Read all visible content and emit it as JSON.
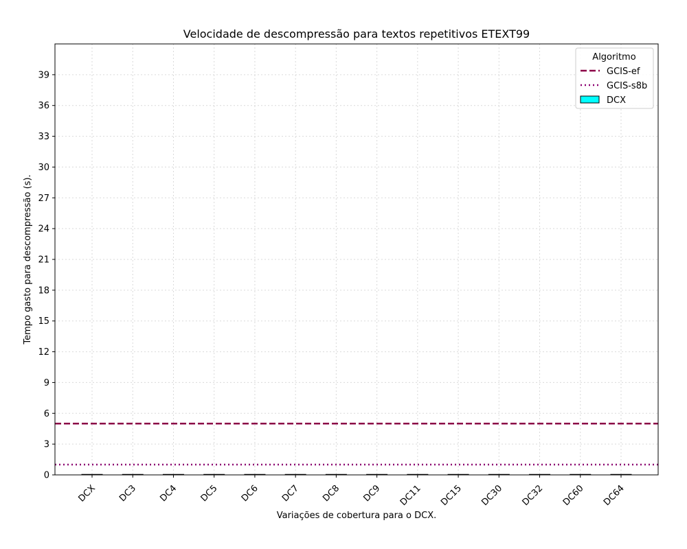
{
  "chart_data": {
    "type": "bar",
    "title": "Velocidade de descompressão para textos repetitivos ETEXT99",
    "xlabel": "Variações de cobertura para o DCX.",
    "ylabel": "Tempo gasto para descompressão (s).",
    "categories": [
      "DCX",
      "DC3",
      "DC4",
      "DC5",
      "DC6",
      "DC7",
      "DC8",
      "DC9",
      "DC11",
      "DC15",
      "DC30",
      "DC32",
      "DC60",
      "DC64"
    ],
    "series": [
      {
        "name": "DCX",
        "values": [
          0.05,
          0.05,
          0.05,
          0.05,
          0.05,
          0.05,
          0.05,
          0.05,
          0.05,
          0.05,
          0.05,
          0.05,
          0.05,
          0.05
        ],
        "color": "#00ffff"
      }
    ],
    "reference_lines": [
      {
        "name": "GCIS-ef",
        "value": 5.0,
        "style": "dashed",
        "color": "#8b0046"
      },
      {
        "name": "GCIS-s8b",
        "value": 1.0,
        "style": "dotted",
        "color": "#8b0070"
      }
    ],
    "ylim": [
      0,
      42
    ],
    "yticks": [
      0,
      3,
      6,
      9,
      12,
      15,
      18,
      21,
      24,
      27,
      30,
      33,
      36,
      39
    ],
    "grid": true,
    "legend": {
      "title": "Algoritmo",
      "position": "top-right"
    }
  }
}
